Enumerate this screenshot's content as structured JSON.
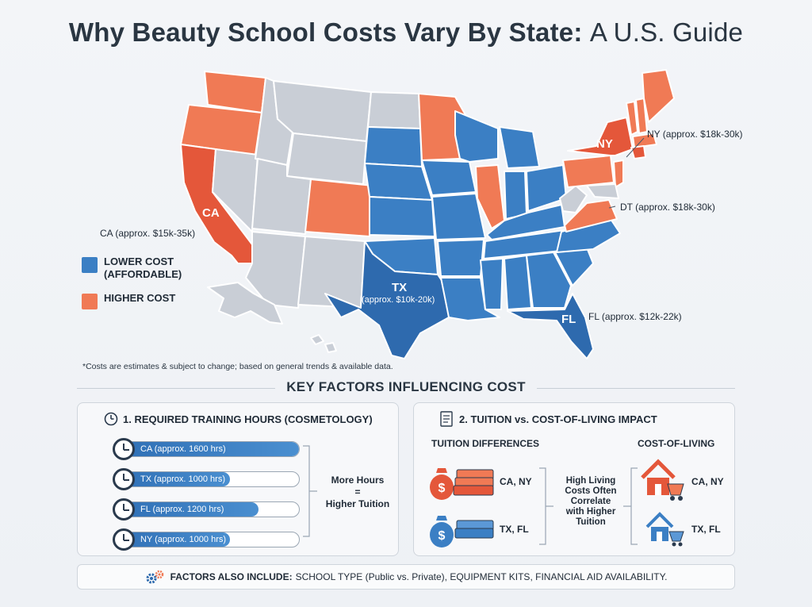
{
  "title": {
    "bold": "Why Beauty School Costs Vary By State:",
    "light": "A U.S. Guide"
  },
  "map": {
    "callouts": {
      "ca": "CA (approx. $15k-35k)",
      "ny": "NY (approx. $18k-30k)",
      "dt": "DT (approx. $18k-30k)",
      "fl": "FL (approx. $12k-22k)",
      "tx": "(approx. $10k-20k)"
    },
    "tags": {
      "ca": "CA",
      "ny": "NY",
      "tx": "TX",
      "fl": "FL"
    },
    "colors": {
      "lower": "#3b7fc4",
      "lower_dark": "#2e6aae",
      "higher": "#f07a55",
      "higher_dark": "#e4573a",
      "neutral": "#c9ced6"
    }
  },
  "legend": {
    "lower": "LOWER COST\n(AFFORDABLE)",
    "higher": "HIGHER COST"
  },
  "note": "*Costs are estimates & subject to change; based on general trends & available data.",
  "factors_title": "KEY FACTORS INFLUENCING COST",
  "panel1": {
    "title": "1. REQUIRED TRAINING HOURS (COSMETOLOGY)",
    "bars": [
      {
        "label": "CA (approx. 1600 hrs)",
        "fill": 1.0
      },
      {
        "label": "TX (approx. 1000 hrs)",
        "fill": 0.62
      },
      {
        "label": "FL (approx. 1200 hrs)",
        "fill": 0.78
      },
      {
        "label": "NY (approx. 1000 hrs)",
        "fill": 0.62
      }
    ],
    "conclusion": "More Hours\n=\nHigher Tuition"
  },
  "panel2": {
    "title": "2. TUITION vs. COST-OF-LIVING IMPACT",
    "tuition_heading": "TUITION DIFFERENCES",
    "col_heading": "COST-OF-LIVING",
    "tuition_high": "CA, NY",
    "tuition_low": "TX, FL",
    "col_high": "CA, NY",
    "col_low": "TX, FL",
    "middle": "High Living\nCosts Often\nCorrelate\nwith Higher\nTuition"
  },
  "footer": {
    "bold": "FACTORS ALSO INCLUDE:",
    "text": "SCHOOL TYPE (Public vs. Private), EQUIPMENT KITS, FINANCIAL AID AVAILABILITY."
  }
}
